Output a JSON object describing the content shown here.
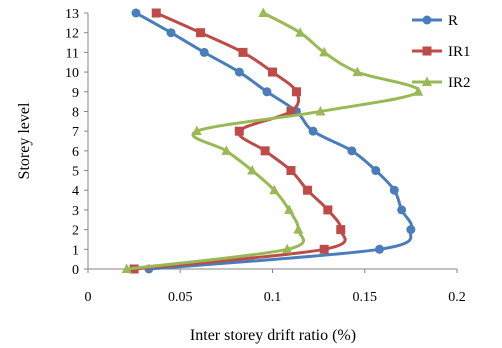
{
  "chart_data": {
    "type": "line",
    "title": "",
    "xlabel": "Inter storey drift ratio (%)",
    "ylabel": "Storey level",
    "xlim": [
      0,
      0.2
    ],
    "ylim": [
      0,
      13
    ],
    "x_ticks": [
      0,
      0.05,
      0.1,
      0.15,
      0.2
    ],
    "x_tick_labels": [
      "0",
      "0.05",
      "0.1",
      "0.15",
      "0.2"
    ],
    "y_ticks": [
      0,
      1,
      2,
      3,
      4,
      5,
      6,
      7,
      8,
      9,
      10,
      11,
      12,
      13
    ],
    "y_tick_labels": [
      "0",
      "1",
      "2",
      "3",
      "4",
      "5",
      "6",
      "7",
      "8",
      "9",
      "10",
      "11",
      "12",
      "13"
    ],
    "grid": false,
    "legend_position": "right",
    "series": [
      {
        "name": "R",
        "color": "#4a7ebb",
        "marker": "circle",
        "points": [
          [
            0.033,
            0
          ],
          [
            0.158,
            1
          ],
          [
            0.175,
            2
          ],
          [
            0.17,
            3
          ],
          [
            0.166,
            4
          ],
          [
            0.156,
            5
          ],
          [
            0.143,
            6
          ],
          [
            0.122,
            7
          ],
          [
            0.113,
            8
          ],
          [
            0.097,
            9
          ],
          [
            0.082,
            10
          ],
          [
            0.063,
            11
          ],
          [
            0.045,
            12
          ],
          [
            0.026,
            13
          ]
        ]
      },
      {
        "name": "IR1",
        "color": "#be4b48",
        "marker": "square",
        "points": [
          [
            0.025,
            0
          ],
          [
            0.128,
            1
          ],
          [
            0.137,
            2
          ],
          [
            0.13,
            3
          ],
          [
            0.119,
            4
          ],
          [
            0.11,
            5
          ],
          [
            0.096,
            6
          ],
          [
            0.082,
            7
          ],
          [
            0.11,
            8
          ],
          [
            0.113,
            9
          ],
          [
            0.1,
            10
          ],
          [
            0.084,
            11
          ],
          [
            0.061,
            12
          ],
          [
            0.037,
            13
          ]
        ]
      },
      {
        "name": "IR2",
        "color": "#98b954",
        "marker": "triangle",
        "points": [
          [
            0.021,
            0
          ],
          [
            0.108,
            1
          ],
          [
            0.114,
            2
          ],
          [
            0.109,
            3
          ],
          [
            0.101,
            4
          ],
          [
            0.089,
            5
          ],
          [
            0.075,
            6
          ],
          [
            0.059,
            7
          ],
          [
            0.126,
            8
          ],
          [
            0.179,
            9
          ],
          [
            0.146,
            10
          ],
          [
            0.128,
            11
          ],
          [
            0.115,
            12
          ],
          [
            0.095,
            13
          ]
        ]
      }
    ]
  }
}
